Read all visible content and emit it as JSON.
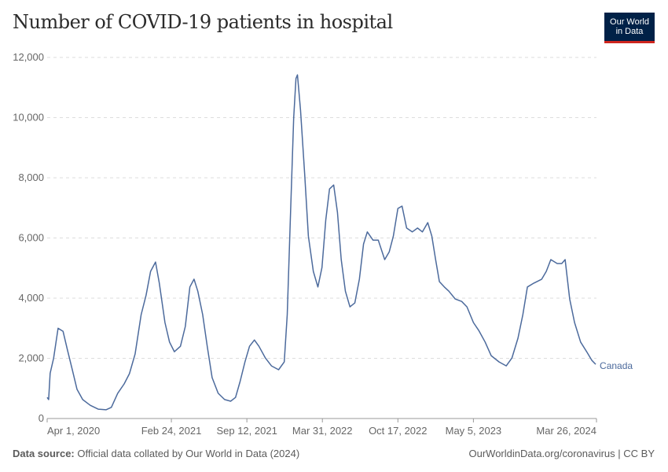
{
  "header": {
    "title": "Number of COVID-19 patients in hospital",
    "logo_line1": "Our World",
    "logo_line2": "in Data"
  },
  "footer": {
    "source_label": "Data source:",
    "source_text": "Official data collated by Our World in Data (2024)",
    "credit": "OurWorldinData.org/coronavirus | CC BY"
  },
  "chart_data": {
    "type": "line",
    "title": "Number of COVID-19 patients in hospital",
    "xlabel": "",
    "ylabel": "",
    "x_units": "days since Apr 1, 2020",
    "xlim": [
      0,
      1455
    ],
    "ylim": [
      0,
      12000
    ],
    "y_ticks": [
      0,
      2000,
      4000,
      6000,
      8000,
      10000,
      12000
    ],
    "y_tick_labels": [
      "0",
      "2,000",
      "4,000",
      "6,000",
      "8,000",
      "10,000",
      "12,000"
    ],
    "x_ticks": [
      0,
      329,
      529,
      729,
      929,
      1129,
      1455
    ],
    "x_tick_labels": [
      "Apr 1, 2020",
      "Feb 24, 2021",
      "Sep 12, 2021",
      "Mar 31, 2022",
      "Oct 17, 2022",
      "May 5, 2023",
      "Mar 26, 2024"
    ],
    "grid": "horizontal dashed",
    "color": "#4c6a9c",
    "series": [
      {
        "name": "Canada",
        "x": [
          0,
          4,
          8,
          17,
          29,
          42,
          54,
          67,
          79,
          94,
          114,
          135,
          156,
          170,
          187,
          204,
          218,
          233,
          249,
          262,
          274,
          287,
          297,
          312,
          324,
          337,
          353,
          366,
          378,
          389,
          399,
          412,
          424,
          437,
          453,
          470,
          486,
          499,
          511,
          524,
          536,
          549,
          561,
          578,
          594,
          613,
          628,
          636,
          644,
          653,
          659,
          663,
          671,
          682,
          692,
          705,
          717,
          728,
          738,
          748,
          759,
          769,
          779,
          790,
          802,
          815,
          827,
          838,
          848,
          863,
          877,
          894,
          906,
          917,
          929,
          940,
          952,
          967,
          981,
          994,
          1008,
          1019,
          1029,
          1039,
          1052,
          1064,
          1081,
          1098,
          1112,
          1129,
          1143,
          1160,
          1176,
          1197,
          1216,
          1231,
          1247,
          1260,
          1272,
          1289,
          1310,
          1322,
          1334,
          1351,
          1363,
          1372,
          1384,
          1397,
          1413,
          1430,
          1443,
          1453
        ],
        "values": [
          700,
          630,
          1500,
          2000,
          3000,
          2900,
          2270,
          1600,
          970,
          630,
          440,
          310,
          290,
          370,
          840,
          1150,
          1490,
          2140,
          3450,
          4100,
          4890,
          5200,
          4500,
          3190,
          2540,
          2220,
          2400,
          3060,
          4370,
          4630,
          4230,
          3450,
          2400,
          1360,
          840,
          630,
          575,
          700,
          1230,
          1880,
          2400,
          2610,
          2400,
          2010,
          1750,
          1620,
          1880,
          3450,
          6590,
          9990,
          11300,
          11420,
          10250,
          8160,
          6060,
          4890,
          4370,
          5020,
          6590,
          7630,
          7760,
          6850,
          5280,
          4230,
          3710,
          3840,
          4630,
          5800,
          6200,
          5930,
          5930,
          5280,
          5540,
          6060,
          6980,
          7060,
          6330,
          6200,
          6330,
          6200,
          6510,
          6060,
          5280,
          4550,
          4370,
          4230,
          3970,
          3890,
          3710,
          3190,
          2930,
          2540,
          2090,
          1880,
          1750,
          2010,
          2670,
          3450,
          4370,
          4500,
          4630,
          4890,
          5280,
          5150,
          5150,
          5280,
          3970,
          3190,
          2540,
          2200,
          1930,
          1800
        ]
      }
    ]
  }
}
